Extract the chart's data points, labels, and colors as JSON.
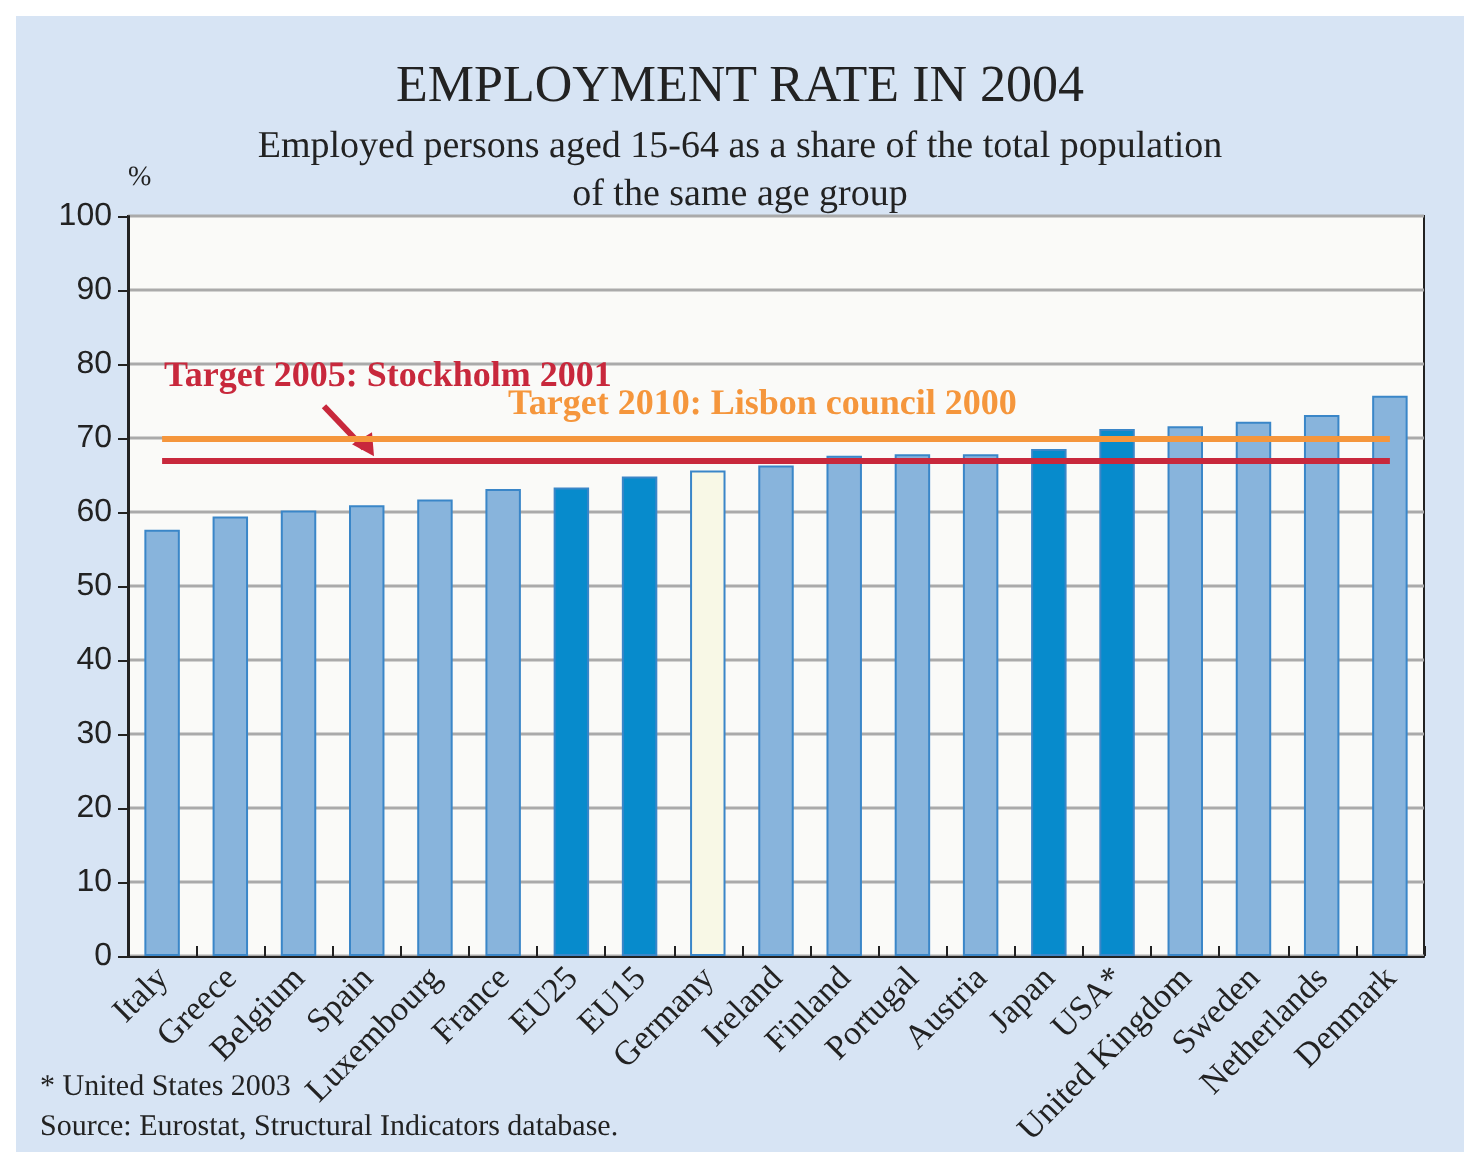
{
  "chart_data": {
    "type": "bar",
    "title": "EMPLOYMENT RATE IN 2004",
    "subtitle": "Employed persons aged 15-64 as a share of the total population\nof the same age group",
    "ylabel": "%",
    "categories": [
      "Italy",
      "Greece",
      "Belgium",
      "Spain",
      "Luxembourg",
      "France",
      "EU25",
      "EU15",
      "Germany",
      "Ireland",
      "Finland",
      "Portugal",
      "Austria",
      "Japan",
      "USA*",
      "United Kingdom",
      "Sweden",
      "Netherlands",
      "Denmark"
    ],
    "values": [
      57.6,
      59.4,
      60.2,
      60.9,
      61.7,
      63.1,
      63.3,
      64.8,
      65.6,
      66.3,
      67.6,
      67.8,
      67.8,
      68.5,
      71.2,
      71.6,
      72.2,
      73.1,
      75.7
    ],
    "colors": [
      "#88b4dc",
      "#88b4dc",
      "#88b4dc",
      "#88b4dc",
      "#88b4dc",
      "#88b4dc",
      "#078bcc",
      "#078bcc",
      "#f8f8e6",
      "#88b4dc",
      "#88b4dc",
      "#88b4dc",
      "#88b4dc",
      "#078bcc",
      "#078bcc",
      "#88b4dc",
      "#88b4dc",
      "#88b4dc",
      "#88b4dc"
    ],
    "ylim": [
      0,
      100
    ],
    "yticks": [
      0,
      10,
      20,
      30,
      40,
      50,
      60,
      70,
      80,
      90,
      100
    ],
    "grid": "y",
    "ref_lines": [
      {
        "axis": "y",
        "value": 70,
        "label": "Target 2010: Lisbon council 2000",
        "color": "#f5963c"
      },
      {
        "axis": "y",
        "value": 67,
        "label": "Target 2005: Stockholm 2001",
        "color": "#c8283c"
      }
    ],
    "annotations": [
      "* United States 2003",
      "Source: Eurostat, Structural Indicators database."
    ]
  }
}
